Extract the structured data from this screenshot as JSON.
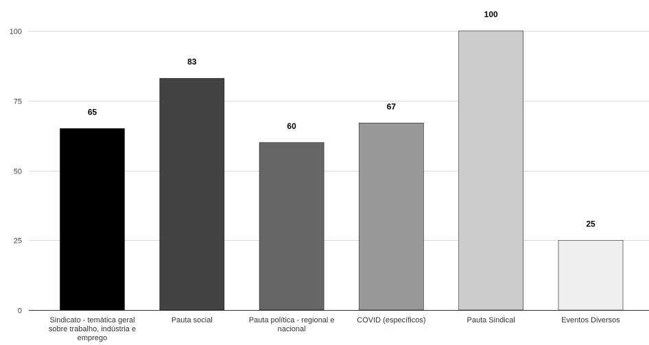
{
  "chart_data": {
    "type": "bar",
    "title": "",
    "xlabel": "",
    "ylabel": "",
    "ylim": [
      0,
      100
    ],
    "yticks": [
      0,
      25,
      50,
      75,
      100
    ],
    "grid": true,
    "legend": "none",
    "categories": [
      "Sindicato - temática geral sobre trabalho, indústria e emprego",
      "Pauta social",
      "Pauta política - regional e nacional",
      "COVID (específicos)",
      "Pauta Sindical",
      "Eventos Diversos"
    ],
    "category_lines": [
      [
        "Sindicato - temática geral",
        "sobre trabalho, indústria e",
        "emprego"
      ],
      [
        "Pauta social"
      ],
      [
        "Pauta política - regional e",
        "nacional"
      ],
      [
        "COVID (específicos)"
      ],
      [
        "Pauta Sindical"
      ],
      [
        "Eventos Diversos"
      ]
    ],
    "values": [
      65,
      83,
      60,
      67,
      100,
      25
    ],
    "data_labels": [
      "65",
      "83",
      "60",
      "67",
      "100",
      "25"
    ],
    "colors": [
      "#000000",
      "#434343",
      "#666666",
      "#999999",
      "#cccccc",
      "#efefef"
    ]
  }
}
